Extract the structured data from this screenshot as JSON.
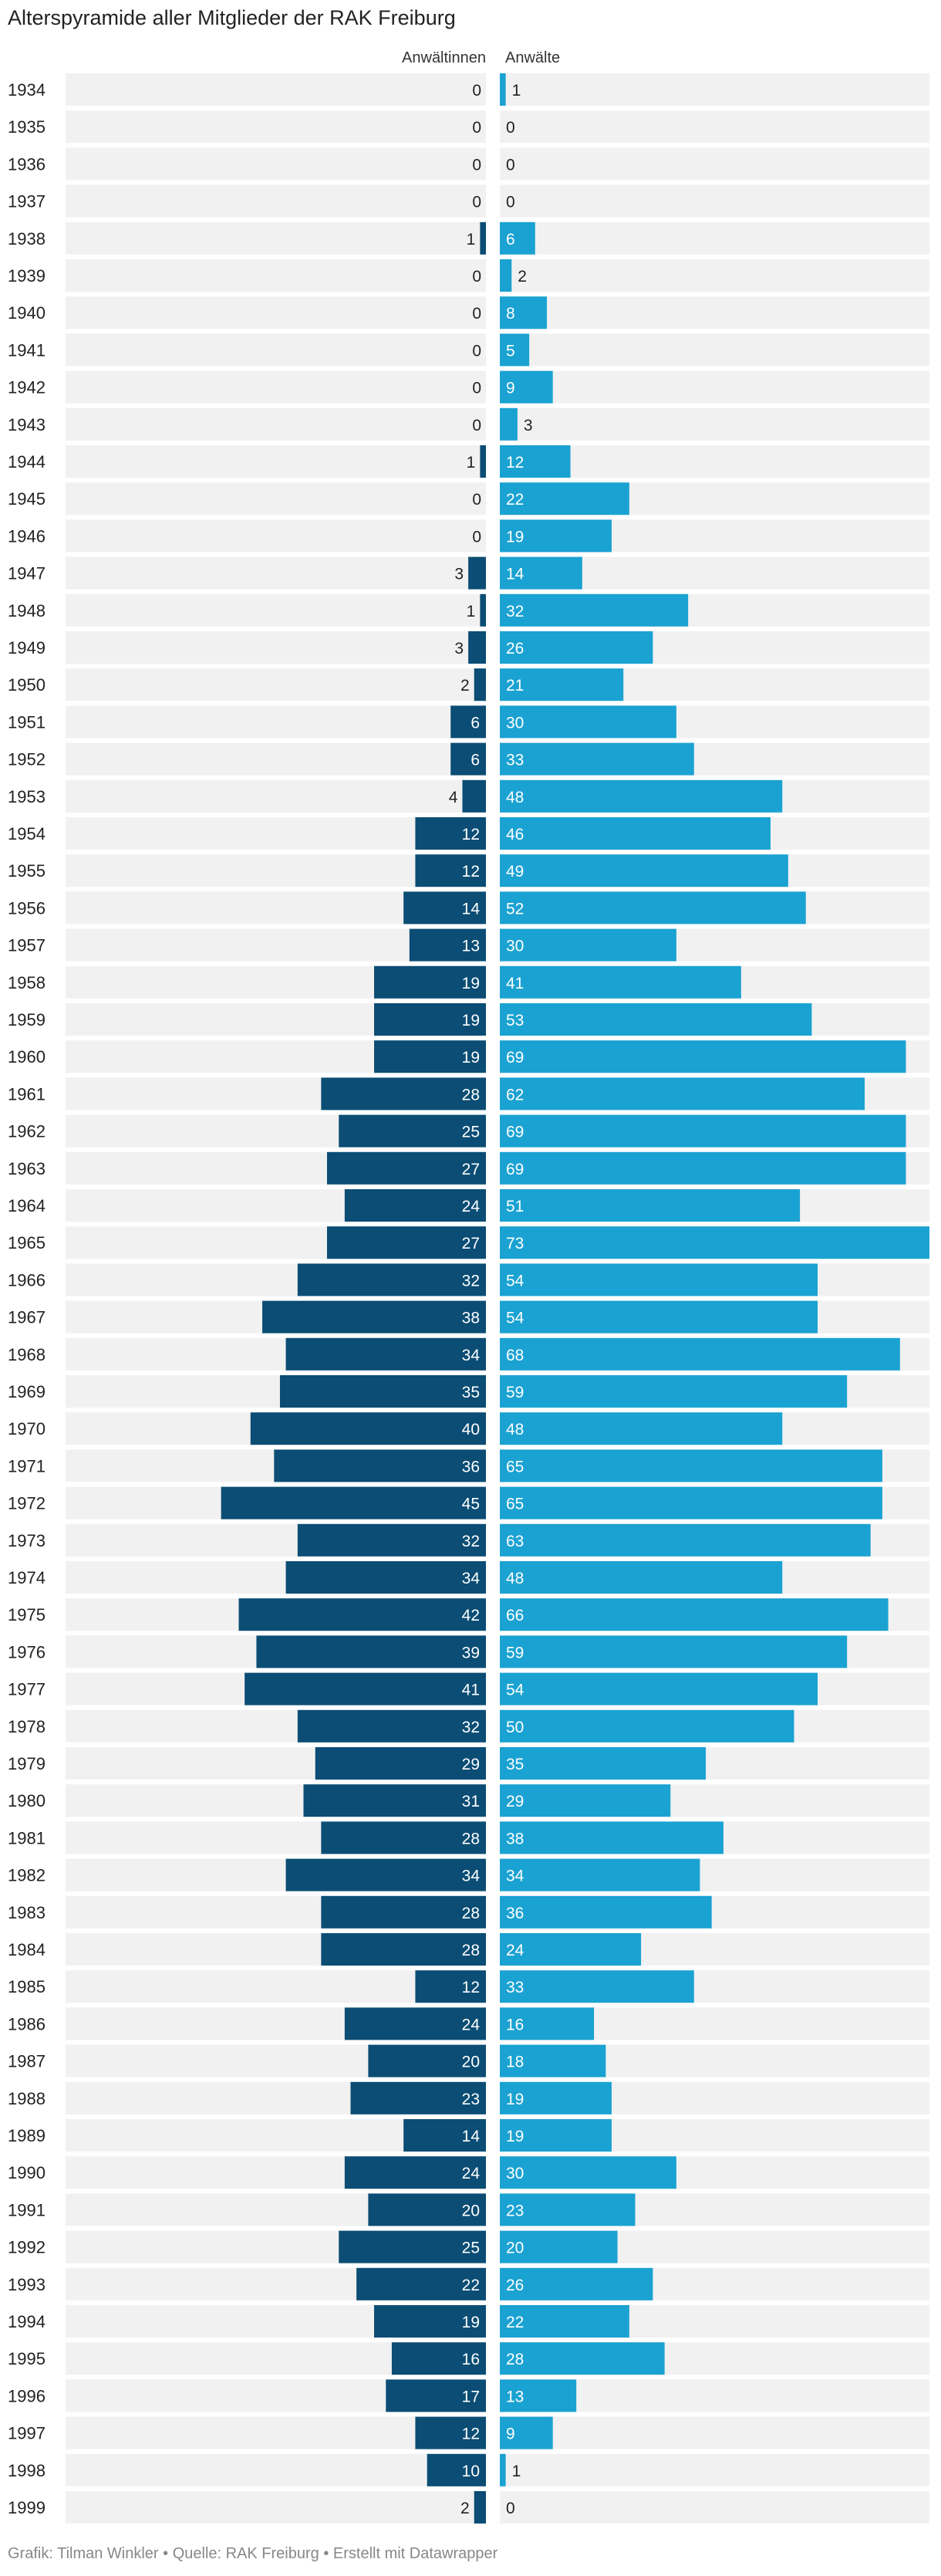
{
  "title": "Alterspyramide aller Mitglieder der RAK Freiburg",
  "footer": "Grafik: Tilman Winkler • Quelle: RAK Freiburg • Erstellt mit Datawrapper",
  "colors": {
    "women": "#0b4d74",
    "men": "#1aa2d2",
    "row_bg": "#f1f1f1"
  },
  "chart_data": {
    "type": "bar",
    "categories": [
      "1934",
      "1935",
      "1936",
      "1937",
      "1938",
      "1939",
      "1940",
      "1941",
      "1942",
      "1943",
      "1944",
      "1945",
      "1946",
      "1947",
      "1948",
      "1949",
      "1950",
      "1951",
      "1952",
      "1953",
      "1954",
      "1955",
      "1956",
      "1957",
      "1958",
      "1959",
      "1960",
      "1961",
      "1962",
      "1963",
      "1964",
      "1965",
      "1966",
      "1967",
      "1968",
      "1969",
      "1970",
      "1971",
      "1972",
      "1973",
      "1974",
      "1975",
      "1976",
      "1977",
      "1978",
      "1979",
      "1980",
      "1981",
      "1982",
      "1983",
      "1984",
      "1985",
      "1986",
      "1987",
      "1988",
      "1989",
      "1990",
      "1991",
      "1992",
      "1993",
      "1994",
      "1995",
      "1996",
      "1997",
      "1998",
      "1999"
    ],
    "series": [
      {
        "name": "Anwältinnen",
        "values": [
          0,
          0,
          0,
          0,
          1,
          0,
          0,
          0,
          0,
          0,
          1,
          0,
          0,
          3,
          1,
          3,
          2,
          6,
          6,
          4,
          12,
          12,
          14,
          13,
          19,
          19,
          19,
          28,
          25,
          27,
          24,
          27,
          32,
          38,
          34,
          35,
          40,
          36,
          45,
          32,
          34,
          42,
          39,
          41,
          32,
          29,
          31,
          28,
          34,
          28,
          28,
          12,
          24,
          20,
          23,
          14,
          24,
          20,
          25,
          22,
          19,
          16,
          17,
          12,
          10,
          2
        ]
      },
      {
        "name": "Anwälte",
        "values": [
          1,
          0,
          0,
          0,
          6,
          2,
          8,
          5,
          9,
          3,
          12,
          22,
          19,
          14,
          32,
          26,
          21,
          30,
          33,
          48,
          46,
          49,
          52,
          30,
          41,
          53,
          69,
          62,
          69,
          69,
          51,
          73,
          54,
          54,
          68,
          59,
          48,
          65,
          65,
          63,
          48,
          66,
          59,
          54,
          50,
          35,
          29,
          38,
          34,
          36,
          24,
          33,
          16,
          18,
          19,
          19,
          30,
          23,
          20,
          26,
          22,
          28,
          13,
          9,
          1,
          0
        ]
      }
    ]
  }
}
